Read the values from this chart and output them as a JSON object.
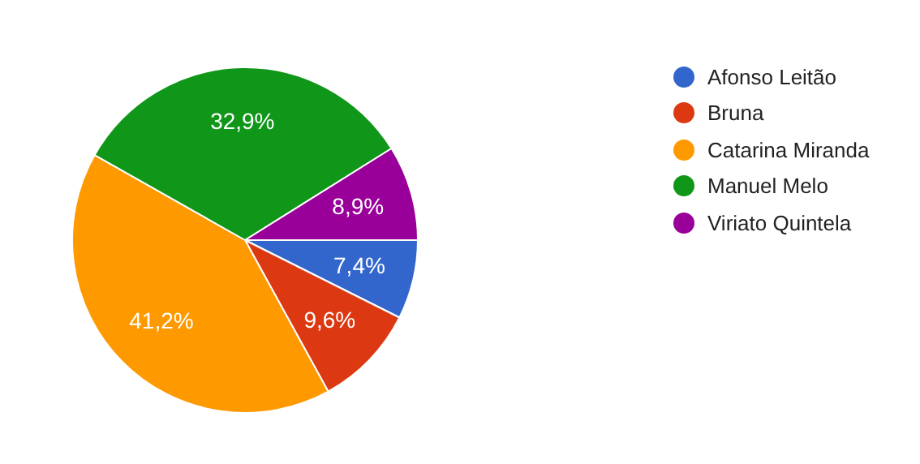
{
  "chart_data": {
    "type": "pie",
    "categories": [
      "Afonso Leitão",
      "Bruna",
      "Catarina Miranda",
      "Manuel Melo",
      "Viriato Quintela"
    ],
    "values": [
      7.4,
      9.6,
      41.2,
      32.9,
      8.9
    ],
    "value_labels": [
      "7,4%",
      "9,6%",
      "41,2%",
      "32,9%",
      "8,9%"
    ],
    "colors": [
      "#3366cc",
      "#dc3912",
      "#ff9900",
      "#109618",
      "#990099"
    ],
    "legend": "right"
  }
}
